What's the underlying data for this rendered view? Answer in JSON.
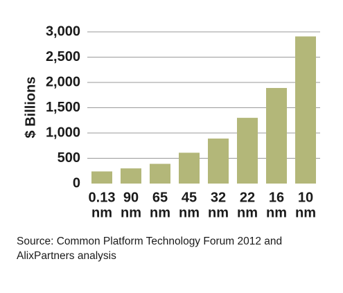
{
  "chart_data": {
    "type": "bar",
    "categories": [
      [
        "0.13",
        "nm"
      ],
      [
        "90",
        "nm"
      ],
      [
        "65",
        "nm"
      ],
      [
        "45",
        "nm"
      ],
      [
        "32",
        "nm"
      ],
      [
        "22",
        "nm"
      ],
      [
        "16",
        "nm"
      ],
      [
        "10",
        "nm"
      ]
    ],
    "values": [
      240,
      300,
      390,
      610,
      890,
      1300,
      1890,
      2910
    ],
    "ylabel": "$ Billions",
    "ylim": [
      0,
      3000
    ],
    "yticks": [
      0,
      500,
      1000,
      1500,
      2000,
      2500,
      3000
    ],
    "ytick_labels": [
      "0",
      "500",
      "1,000",
      "1,500",
      "2,000",
      "2,500",
      "3,000"
    ],
    "grid": true,
    "bar_color": "#b3b779",
    "grid_color": "#9a9a9a"
  },
  "source_note": "Source: Common Platform Technology Forum 2012 and AlixPartners analysis"
}
